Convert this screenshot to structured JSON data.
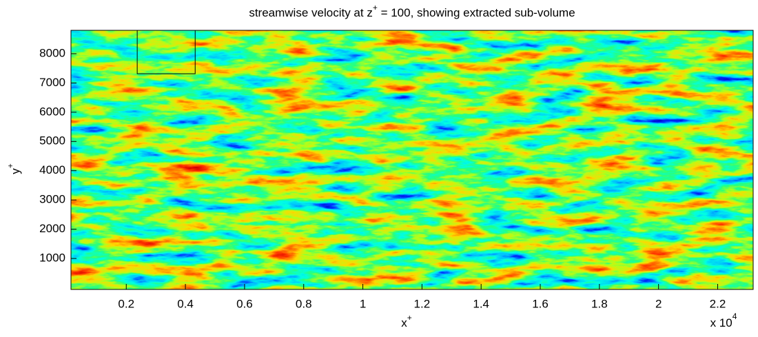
{
  "chart_data": {
    "type": "heatmap",
    "title": {
      "main": "streamwise velocity at z",
      "sup": "+",
      "rest": " = 100, showing extracted sub-volume"
    },
    "xlabel": {
      "main": "x",
      "sup": "+"
    },
    "ylabel": {
      "main": "y",
      "sup": "+"
    },
    "x_multiplier": {
      "main": "x 10",
      "sup": "4"
    },
    "xlim": [
      0.013,
      2.32
    ],
    "ylim": [
      -60,
      8800
    ],
    "xticks": [
      0.2,
      0.4,
      0.6,
      0.8,
      1,
      1.2,
      1.4,
      1.6,
      1.8,
      2,
      2.2
    ],
    "yticks": [
      1000,
      2000,
      3000,
      4000,
      5000,
      6000,
      7000,
      8000
    ],
    "colormap": "jet",
    "sub_volume": {
      "x": [
        0.237,
        0.433
      ],
      "y": [
        7315,
        8800
      ],
      "color": "#000000"
    }
  }
}
